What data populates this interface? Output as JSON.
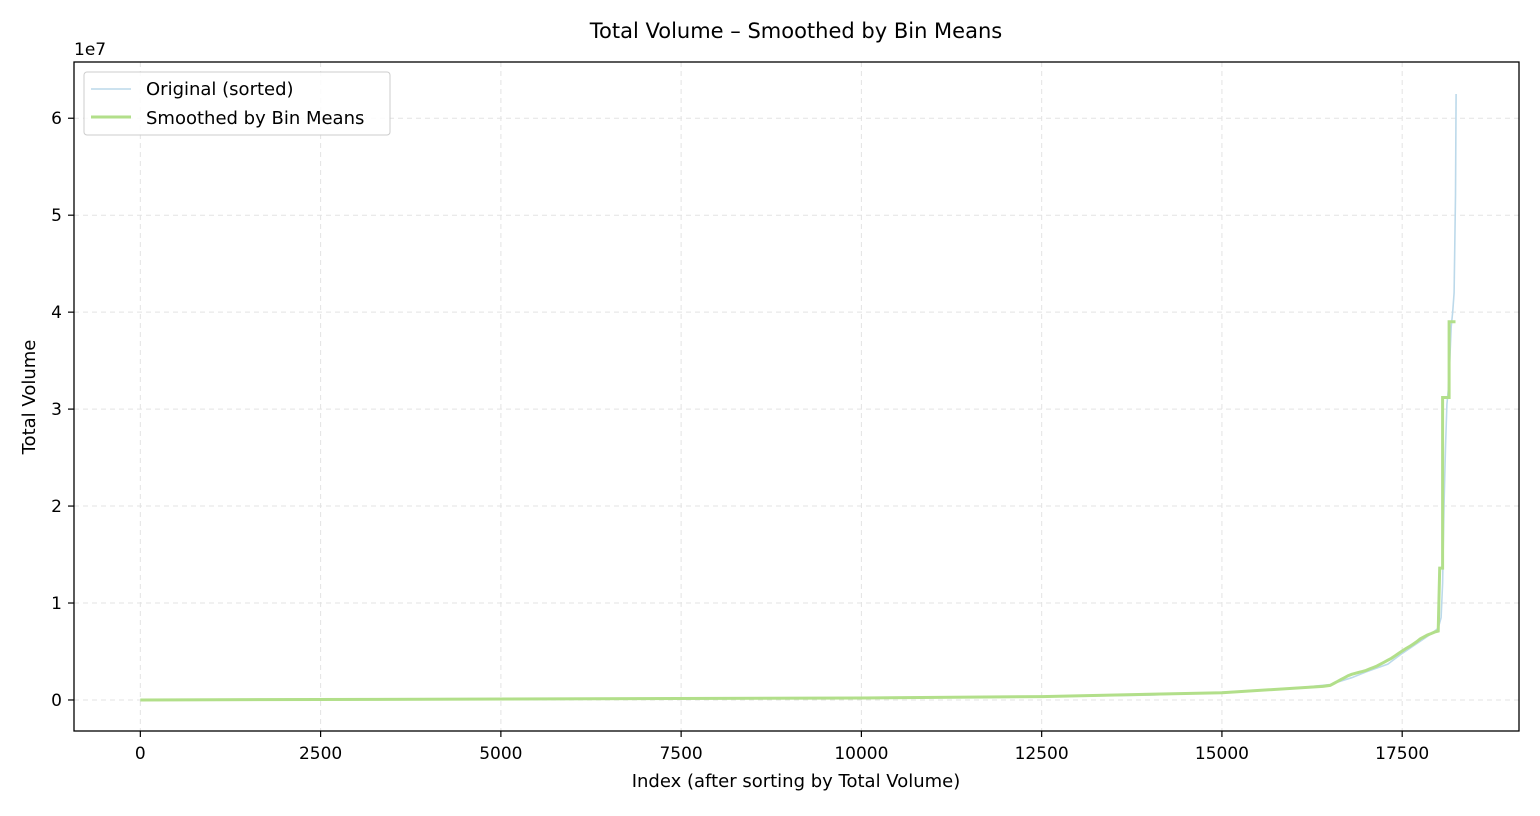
{
  "chart_data": {
    "type": "line",
    "title": "Total Volume – Smoothed by Bin Means",
    "xlabel": "Index (after sorting by Total Volume)",
    "ylabel": "Total Volume",
    "y_offset_label": "1e7",
    "xlim": [
      -920,
      19120
    ],
    "ylim": [
      -3.2,
      65.8
    ],
    "y_scale_note": "values in units of 1e7 shown as 0-6 ticks; data below in 1e6",
    "x_ticks": [
      0,
      2500,
      5000,
      7500,
      10000,
      12500,
      15000,
      17500
    ],
    "x_tick_labels": [
      "0",
      "2500",
      "5000",
      "7500",
      "10000",
      "12500",
      "15000",
      "17500"
    ],
    "y_ticks": [
      0,
      10,
      20,
      30,
      40,
      50,
      60
    ],
    "y_tick_labels": [
      "0",
      "1",
      "2",
      "3",
      "4",
      "5",
      "6"
    ],
    "grid": true,
    "legend_position": "top-left",
    "series": [
      {
        "name": "Original (sorted)",
        "color": "#bcd9ea",
        "x": [
          0,
          2500,
          5000,
          7500,
          10000,
          12500,
          14000,
          15000,
          15500,
          16000,
          16500,
          16800,
          17000,
          17300,
          17500,
          17700,
          17900,
          18000,
          18040,
          18060,
          18080,
          18100,
          18120,
          18140,
          18160,
          18180,
          18200,
          18220,
          18240,
          18248
        ],
        "values": [
          0.0,
          0.02,
          0.05,
          0.1,
          0.2,
          0.35,
          0.5,
          0.8,
          1.0,
          1.2,
          1.6,
          2.3,
          2.9,
          3.7,
          4.8,
          5.8,
          6.8,
          7.4,
          8.5,
          12.0,
          20.0,
          26.0,
          30.5,
          32.0,
          35.0,
          38.5,
          40.0,
          42.0,
          52.0,
          62.5
        ]
      },
      {
        "name": "Smoothed by Bin Means",
        "color": "#b2df8a",
        "x": [
          0,
          10000,
          12500,
          15000,
          16400,
          16500,
          16550,
          16600,
          16650,
          16700,
          16750,
          16800,
          16850,
          16900,
          16950,
          17000,
          17050,
          17100,
          17150,
          17200,
          17250,
          17300,
          17350,
          17400,
          17450,
          17500,
          17550,
          17600,
          17650,
          17700,
          17750,
          17800,
          17850,
          17900,
          17950,
          18000,
          18020,
          18020,
          18060,
          18060,
          18100,
          18100,
          18150,
          18150,
          18200,
          18200,
          18240
        ],
        "values": [
          0.0,
          0.2,
          0.35,
          0.75,
          1.4,
          1.5,
          1.7,
          1.9,
          2.1,
          2.3,
          2.5,
          2.65,
          2.75,
          2.85,
          2.95,
          3.05,
          3.2,
          3.35,
          3.5,
          3.7,
          3.9,
          4.1,
          4.3,
          4.55,
          4.8,
          5.05,
          5.3,
          5.5,
          5.75,
          6.0,
          6.3,
          6.5,
          6.7,
          6.85,
          7.0,
          7.1,
          13.6,
          13.6,
          13.6,
          31.2,
          31.2,
          31.2,
          31.2,
          39.0,
          39.0,
          39.0,
          39.0
        ]
      }
    ]
  }
}
